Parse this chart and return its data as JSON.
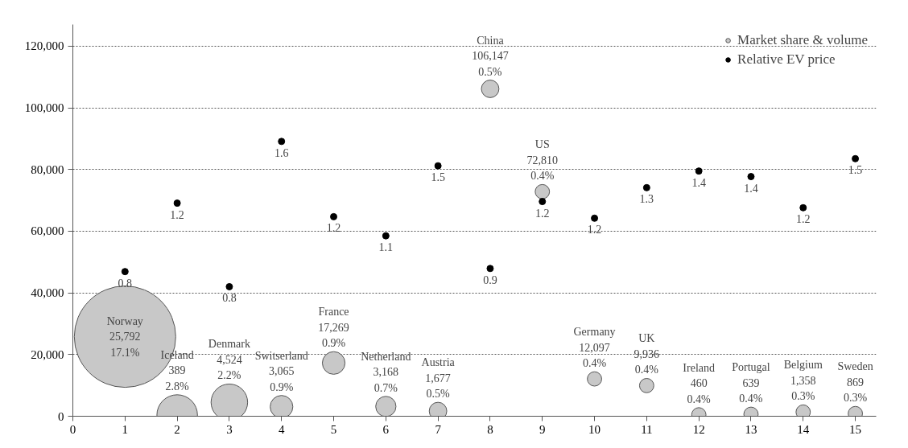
{
  "chart_data": {
    "type": "bubble",
    "xlim": [
      0,
      15.4
    ],
    "xticks": [
      0,
      1,
      2,
      3,
      4,
      5,
      6,
      7,
      8,
      9,
      10,
      11,
      12,
      13,
      14,
      15
    ],
    "ylim": [
      0,
      127000
    ],
    "yticks": [
      {
        "value": 0,
        "label": "0"
      },
      {
        "value": 20000,
        "label": "20,000"
      },
      {
        "value": 40000,
        "label": "40,000"
      },
      {
        "value": 60000,
        "label": "60,000"
      },
      {
        "value": 80000,
        "label": "80,000"
      },
      {
        "value": 100000,
        "label": "100,000"
      },
      {
        "value": 120000,
        "label": "120,000"
      }
    ],
    "grid": "y",
    "legend": "top right",
    "marker": "circle",
    "series": [
      {
        "name": "Market share & volume",
        "color": "#c8c8c8",
        "x": [
          1,
          2,
          3,
          4,
          5,
          6,
          7,
          8,
          9,
          10,
          11,
          12,
          13,
          14,
          15
        ],
        "values": [
          25792,
          389,
          4524,
          3065,
          17269,
          3168,
          1677,
          106147,
          72810,
          12097,
          9936,
          460,
          639,
          1358,
          869
        ],
        "sizes": [
          1,
          0.16,
          0.13,
          0.05,
          0.05,
          0.04,
          0.03,
          0.03,
          0.02,
          0.02,
          0.02,
          0.02,
          0.02,
          0.02,
          0.02
        ],
        "value_labels": [
          "Norway\n25,792\n17.1%",
          "Iceland\n389\n2.8%",
          "Denmark\n4,524\n2.2%",
          "Switserland\n3,065\n0.9%",
          "France\n17,269\n0.9%",
          "Netherland\n3,168\n0.7%",
          "Austria\n1,677\n0.5%",
          "China\n106,147\n0.5%",
          "US\n72,810\n0.4%",
          "Germany\n12,097\n0.4%",
          "UK\n9,936\n0.4%",
          "Ireland\n460\n0.4%",
          "Portugal\n639\n0.4%",
          "Belgium\n1,358\n0.3%",
          "Sweden\n869\n0.3%"
        ]
      },
      {
        "name": "Relative EV price",
        "type": "scatter",
        "color": "#000000",
        "x": [
          1,
          2,
          3,
          4,
          5,
          6,
          7,
          8,
          9,
          10,
          11,
          12,
          13,
          14,
          15
        ],
        "values": [
          46900,
          69100,
          42000,
          89100,
          64700,
          58500,
          81200,
          47900,
          69600,
          64200,
          74100,
          79500,
          77700,
          67600,
          83500
        ]
      }
    ],
    "annotations": [
      {
        "text": "0.8",
        "x": 1,
        "y": 46900
      },
      {
        "text": "1.2",
        "x": 2,
        "y": 69100
      },
      {
        "text": "0.8",
        "x": 3,
        "y": 42000
      },
      {
        "text": "1.6",
        "x": 4,
        "y": 89100
      },
      {
        "text": "1.2",
        "x": 5,
        "y": 64700
      },
      {
        "text": "1.1",
        "x": 6,
        "y": 58500
      },
      {
        "text": "1.5",
        "x": 7,
        "y": 81200
      },
      {
        "text": "0.9",
        "x": 8,
        "y": 47900
      },
      {
        "text": "1.2",
        "x": 9,
        "y": 69600
      },
      {
        "text": "1.2",
        "x": 10,
        "y": 64200
      },
      {
        "text": "1.3",
        "x": 11,
        "y": 74100
      },
      {
        "text": "1.4",
        "x": 12,
        "y": 79500
      },
      {
        "text": "1.4",
        "x": 13,
        "y": 77700
      },
      {
        "text": "1.2",
        "x": 14,
        "y": 67600
      },
      {
        "text": "1.5",
        "x": 15,
        "y": 83500
      }
    ]
  }
}
